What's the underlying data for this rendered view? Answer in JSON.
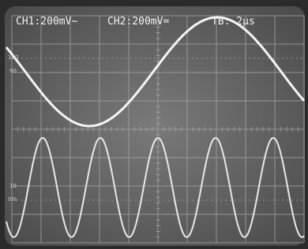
{
  "screen": {
    "readouts": [
      "CH1:200mV~",
      "CH2:200mV=",
      "TB: 2µs"
    ],
    "graticule_marks": [
      "100",
      "90",
      "10",
      "0%"
    ]
  }
}
